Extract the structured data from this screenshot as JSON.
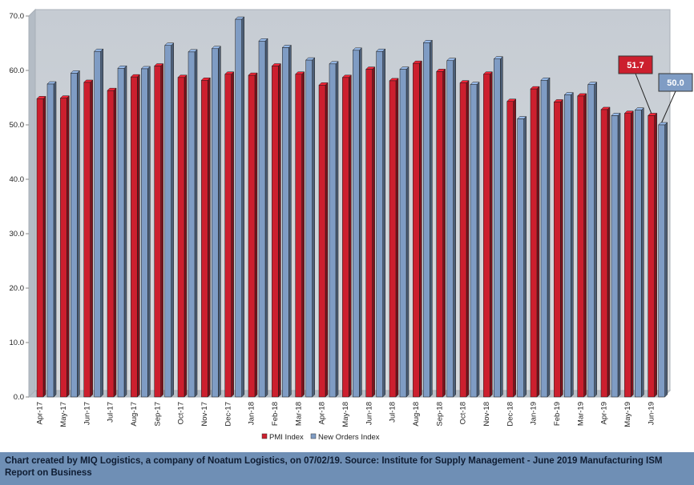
{
  "chart_data": {
    "type": "bar",
    "categories": [
      "Apr-17",
      "May-17",
      "Jun-17",
      "Jul-17",
      "Aug-17",
      "Sep-17",
      "Oct-17",
      "Nov-17",
      "Dec-17",
      "Jan-18",
      "Feb-18",
      "Mar-18",
      "Apr-18",
      "May-18",
      "Jun-18",
      "Jul-18",
      "Aug-18",
      "Sep-18",
      "Oct-18",
      "Nov-18",
      "Dec-18",
      "Jan-19",
      "Feb-19",
      "Mar-19",
      "Apr-19",
      "May-19",
      "Jun-19"
    ],
    "series": [
      {
        "name": "PMI Index",
        "color": "#cc1f2e",
        "values": [
          54.8,
          54.9,
          57.8,
          56.3,
          58.8,
          60.8,
          58.7,
          58.2,
          59.3,
          59.1,
          60.8,
          59.3,
          57.3,
          58.7,
          60.2,
          58.1,
          61.3,
          59.8,
          57.7,
          59.3,
          54.3,
          56.6,
          54.2,
          55.3,
          52.8,
          52.1,
          51.7
        ]
      },
      {
        "name": "New Orders Index",
        "color": "#7f9cc4",
        "values": [
          57.5,
          59.5,
          63.5,
          60.4,
          60.3,
          64.6,
          63.4,
          64.0,
          69.4,
          65.4,
          64.2,
          61.9,
          61.2,
          63.7,
          63.5,
          60.2,
          65.1,
          61.8,
          57.4,
          62.1,
          51.1,
          58.2,
          55.5,
          57.4,
          51.7,
          52.7,
          50.0
        ]
      }
    ],
    "ylim": [
      0,
      70
    ],
    "yticks": [
      "0.0",
      "10.0",
      "20.0",
      "30.0",
      "40.0",
      "50.0",
      "60.0",
      "70.0"
    ],
    "grid": false,
    "legend_position": "bottom",
    "callouts": [
      {
        "label": "51.7",
        "series": 0,
        "index": 26,
        "color": "#cc1f2e"
      },
      {
        "label": "50.0",
        "series": 1,
        "index": 26,
        "color": "#7f9cc4"
      }
    ]
  },
  "footer": {
    "text": "Chart created by MIQ Logistics, a company of Noatum Logistics, on 07/02/19. Source: Institute for Supply Management - June 2019 Manufacturing ISM Report on Business"
  }
}
